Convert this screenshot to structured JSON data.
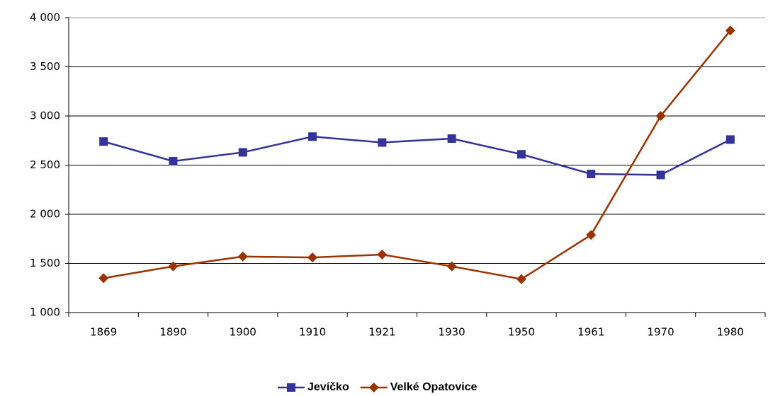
{
  "chart_data": {
    "type": "line",
    "categories": [
      "1869",
      "1890",
      "1900",
      "1910",
      "1921",
      "1930",
      "1950",
      "1961",
      "1970",
      "1980"
    ],
    "series": [
      {
        "name": "Jevíčko",
        "color": "#333399",
        "marker": "square",
        "values": [
          2740,
          2540,
          2630,
          2790,
          2730,
          2770,
          2610,
          2410,
          2400,
          2760
        ]
      },
      {
        "name": "Velké Opatovice",
        "color": "#993300",
        "marker": "diamond",
        "values": [
          1350,
          1470,
          1570,
          1560,
          1590,
          1470,
          1340,
          1790,
          3000,
          3870
        ]
      }
    ],
    "ylim": [
      1000,
      4000
    ],
    "yticks": [
      {
        "value": 1000,
        "label": "1 000"
      },
      {
        "value": 1500,
        "label": "1 500"
      },
      {
        "value": 2000,
        "label": "2 000"
      },
      {
        "value": 2500,
        "label": "2 500"
      },
      {
        "value": 3000,
        "label": "3 000"
      },
      {
        "value": 3500,
        "label": "3 500"
      },
      {
        "value": 4000,
        "label": "4 000"
      }
    ],
    "grid": true,
    "legend": "bottom"
  }
}
